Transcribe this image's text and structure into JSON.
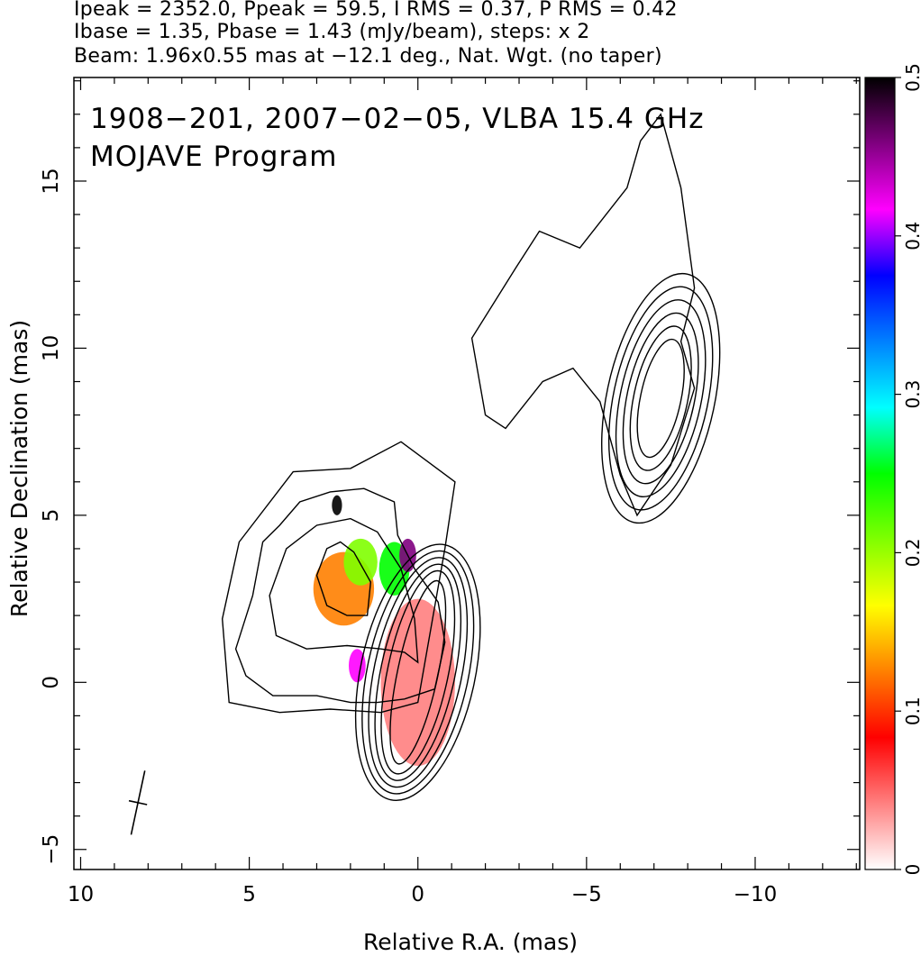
{
  "header": {
    "line1": "Ipeak = 2352.0, Ppeak = 59.5, I RMS = 0.37, P RMS = 0.42",
    "line2": "Ibase = 1.35, Pbase = 1.43 (mJy/beam), steps: x 2",
    "line3": "Beam: 1.96x0.55 mas at −12.1 deg., Nat. Wgt. (no taper)"
  },
  "chart_data": {
    "type": "contour",
    "title": "1908−201, 2007−02−05, VLBA 15.4 GHz",
    "subtitle": "MOJAVE Program",
    "xlabel": "Relative R.A. (mas)",
    "ylabel": "Relative Declination (mas)",
    "xlim": [
      10.2,
      -13.1
    ],
    "ylim": [
      -5.6,
      18.1
    ],
    "x_ticks": [
      10,
      5,
      0,
      -5,
      -10
    ],
    "x_tick_labels": [
      "10",
      "5",
      "0",
      "−5",
      "−10"
    ],
    "y_ticks": [
      -5,
      0,
      5,
      10,
      15
    ],
    "y_tick_labels": [
      "−5",
      "0",
      "5",
      "10",
      "15"
    ],
    "colorbar": {
      "min": 0,
      "max": 0.5,
      "ticks": [
        0,
        0.1,
        0.2,
        0.3,
        0.4,
        0.5
      ],
      "tick_labels": [
        "0",
        "0.1",
        "0.2",
        "0.3",
        "0.4",
        "0.5"
      ],
      "colors": [
        "#ffffff",
        "#ff8080",
        "#ff0000",
        "#ff8000",
        "#ffff00",
        "#80ff00",
        "#00ff00",
        "#00ffff",
        "#0080ff",
        "#0000ff",
        "#ff00ff",
        "#800080",
        "#000000"
      ]
    },
    "beam": {
      "major_mas": 1.96,
      "minor_mas": 0.55,
      "pa_deg": -12.1,
      "center": [
        8.3,
        -3.6
      ]
    },
    "core_contours": {
      "center": [
        0,
        0.3
      ],
      "radii": [
        [
          0.6,
          2.8
        ],
        [
          0.9,
          3.1
        ],
        [
          1.1,
          3.3
        ],
        [
          1.3,
          3.5
        ],
        [
          1.5,
          3.7
        ],
        [
          1.7,
          3.9
        ]
      ],
      "pa_deg": -12
    },
    "jet_contours": {
      "center": [
        -7.2,
        8.5
      ],
      "radii": [
        [
          0.6,
          1.8
        ],
        [
          0.8,
          2.2
        ],
        [
          1.0,
          2.6
        ],
        [
          1.2,
          3.0
        ],
        [
          1.4,
          3.4
        ],
        [
          1.6,
          3.8
        ]
      ],
      "pa_deg": -12
    },
    "outer_contours": [
      [
        [
          -0.5,
          -0.2
        ],
        [
          -0.8,
          1.2
        ],
        [
          -0.6,
          2.4
        ],
        [
          0.1,
          3.4
        ],
        [
          0.6,
          4.4
        ],
        [
          0.7,
          5.4
        ],
        [
          1.6,
          5.8
        ],
        [
          2.6,
          5.7
        ],
        [
          3.5,
          5.4
        ],
        [
          4.1,
          4.7
        ],
        [
          4.6,
          4.2
        ],
        [
          4.9,
          2.6
        ],
        [
          5.4,
          1.0
        ],
        [
          5.1,
          0.2
        ],
        [
          4.3,
          -0.4
        ],
        [
          3.0,
          -0.4
        ],
        [
          2.0,
          -0.6
        ],
        [
          1.2,
          -0.6
        ],
        [
          0.4,
          -0.5
        ]
      ],
      [
        [
          0.0,
          0.6
        ],
        [
          0.1,
          1.9
        ],
        [
          0.5,
          3.4
        ],
        [
          1.2,
          4.5
        ],
        [
          2.0,
          4.9
        ],
        [
          3.0,
          4.7
        ],
        [
          3.9,
          4.0
        ],
        [
          4.4,
          2.6
        ],
        [
          4.2,
          1.4
        ],
        [
          3.3,
          1.0
        ],
        [
          2.1,
          1.1
        ],
        [
          1.1,
          1.0
        ],
        [
          0.4,
          0.9
        ]
      ],
      [
        [
          1.5,
          2.0
        ],
        [
          1.4,
          3.0
        ],
        [
          1.9,
          3.9
        ],
        [
          2.3,
          4.2
        ],
        [
          2.7,
          4.0
        ],
        [
          3.0,
          3.2
        ],
        [
          2.7,
          2.3
        ],
        [
          2.1,
          2.0
        ]
      ],
      [
        [
          -0.8,
          4.0
        ],
        [
          -1.1,
          6.0
        ],
        [
          0.5,
          7.2
        ],
        [
          2.0,
          6.4
        ],
        [
          3.7,
          6.3
        ],
        [
          5.3,
          4.2
        ],
        [
          5.8,
          1.9
        ],
        [
          5.6,
          -0.6
        ],
        [
          4.1,
          -0.9
        ],
        [
          2.6,
          -0.8
        ],
        [
          1.1,
          -0.9
        ],
        [
          0.0,
          -0.6
        ]
      ],
      [
        [
          -2.0,
          8.0
        ],
        [
          -1.6,
          10.3
        ],
        [
          -2.9,
          12.4
        ],
        [
          -3.6,
          13.5
        ],
        [
          -4.8,
          13.0
        ],
        [
          -6.2,
          14.8
        ],
        [
          -6.6,
          16.2
        ],
        [
          -7.2,
          17.0
        ],
        [
          -7.8,
          14.8
        ],
        [
          -8.2,
          11.8
        ],
        [
          -7.8,
          10.2
        ],
        [
          -8.2,
          8.8
        ],
        [
          -7.5,
          6.5
        ],
        [
          -6.5,
          5.0
        ],
        [
          -6.0,
          6.2
        ],
        [
          -5.4,
          8.4
        ],
        [
          -4.6,
          9.4
        ],
        [
          -3.7,
          9.0
        ],
        [
          -2.6,
          7.6
        ]
      ]
    ],
    "polarization_patches": [
      {
        "value": 0.13,
        "center": [
          2.2,
          2.8
        ],
        "half_size": [
          0.9,
          1.1
        ]
      },
      {
        "value": 0.19,
        "center": [
          1.7,
          3.6
        ],
        "half_size": [
          0.5,
          0.7
        ]
      },
      {
        "value": 0.27,
        "center": [
          0.7,
          3.4
        ],
        "half_size": [
          0.45,
          0.8
        ]
      },
      {
        "value": 0.45,
        "center": [
          0.3,
          3.8
        ],
        "half_size": [
          0.25,
          0.5
        ]
      },
      {
        "value": 0.42,
        "center": [
          1.8,
          0.5
        ],
        "half_size": [
          0.25,
          0.5
        ]
      },
      {
        "value": 0.48,
        "center": [
          2.4,
          5.3
        ],
        "half_size": [
          0.15,
          0.3
        ]
      },
      {
        "value": 0.06,
        "center": [
          0.0,
          0.0
        ],
        "half_size": [
          1.1,
          2.5
        ]
      }
    ]
  }
}
